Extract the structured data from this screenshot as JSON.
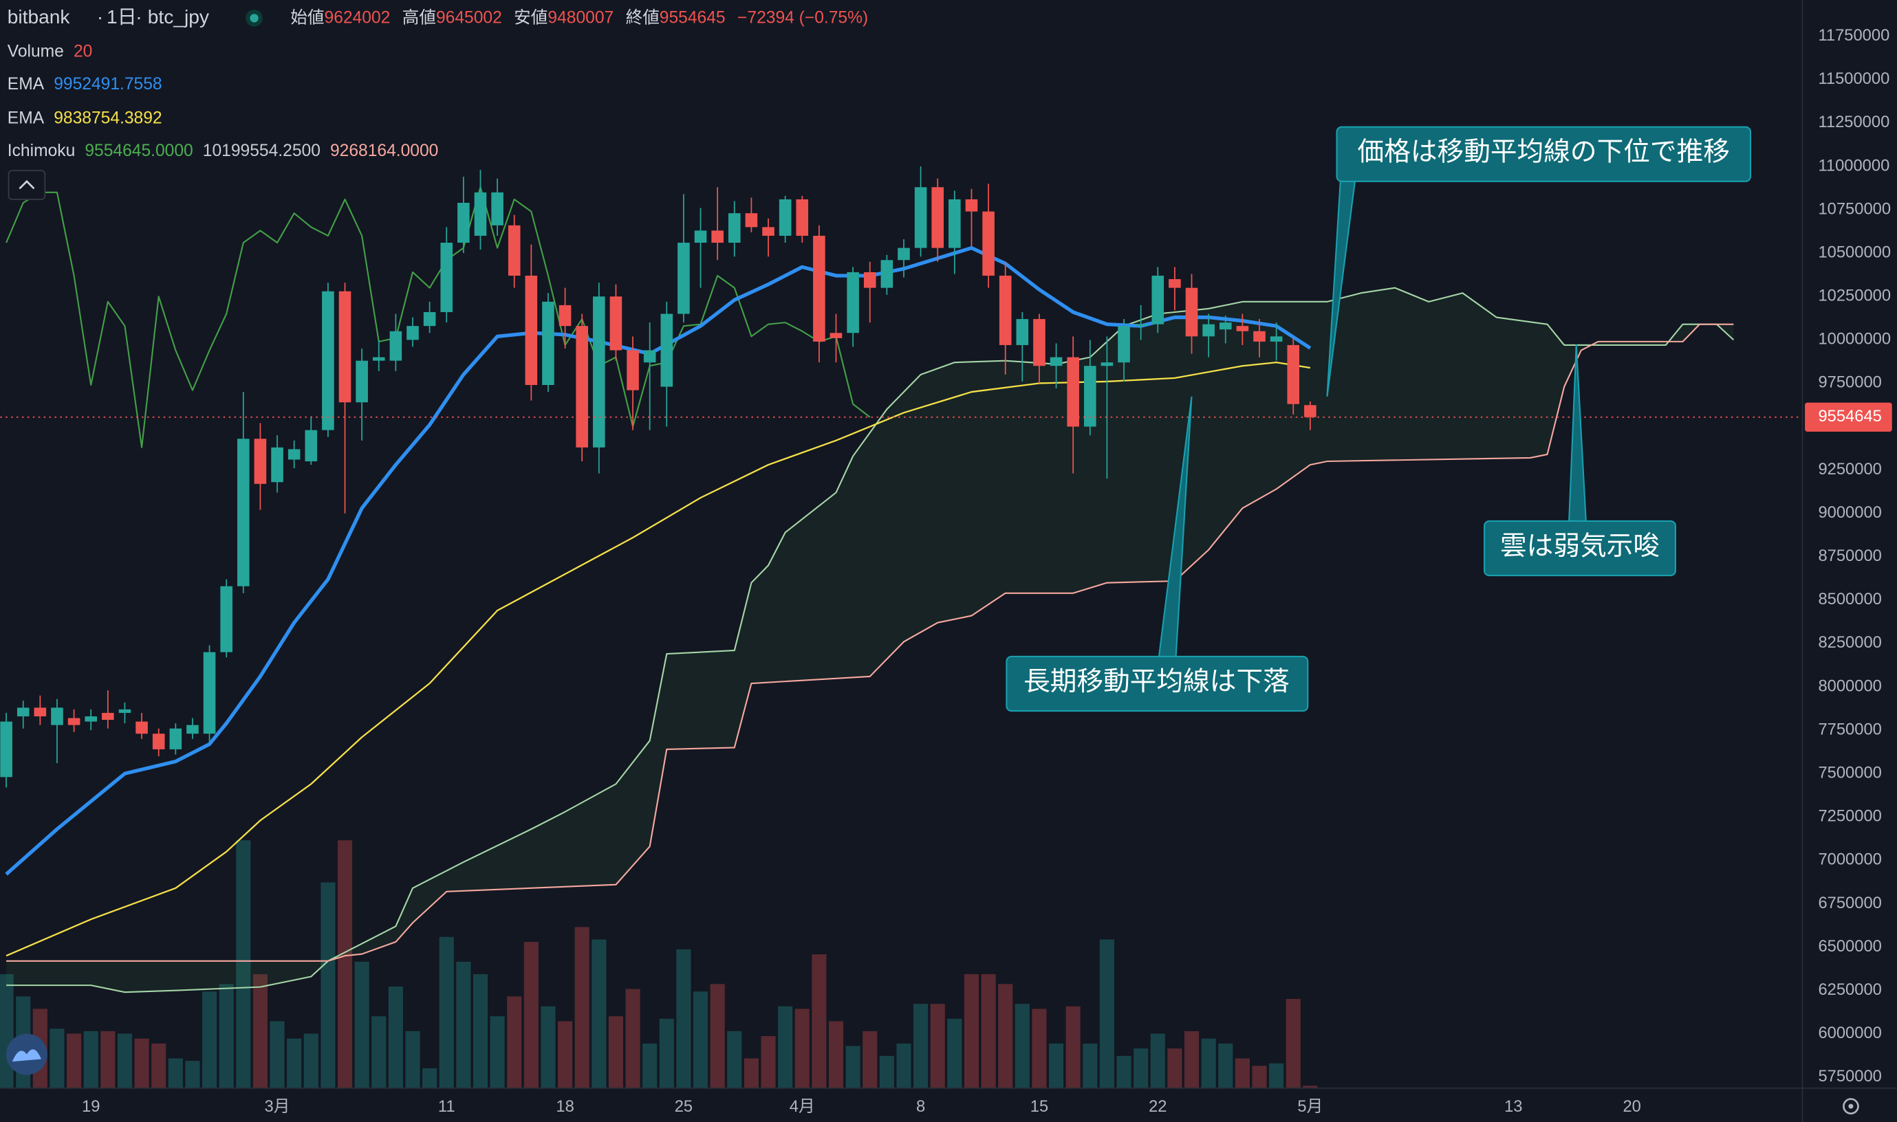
{
  "header": {
    "exchange": "bitbank",
    "interval": "1日",
    "symbol": "btc_jpy",
    "ohlc_labels": [
      "始値",
      "高値",
      "安値",
      "終値"
    ],
    "change": "−72394 (−0.75%)"
  },
  "legend": {
    "volume_name": "Volume",
    "volume_length": 20,
    "ema_name": "EMA",
    "ema_fast": 9952491.7558,
    "ema_slow": 9838754.3892,
    "ichimoku_name": "Ichimoku",
    "ichimoku_values": [
      "9554645.0000",
      "10199554.2500",
      "9268164.0000"
    ]
  },
  "annotations": [
    "価格は移動平均線の下位で推移",
    "長期移動平均線は下落",
    "雲は弱気示唆"
  ],
  "chart_data": {
    "type": "candlestick",
    "up_color": "#26a69a",
    "down_color": "#ef5350",
    "x": [
      45,
      46,
      47,
      48,
      49,
      50,
      51,
      52,
      53,
      54,
      55,
      56,
      57,
      58,
      59,
      60,
      61,
      62,
      63,
      64,
      65,
      66,
      67,
      68,
      69,
      70,
      71,
      72,
      73,
      74,
      75,
      76,
      77,
      78,
      79,
      80,
      81,
      82,
      83,
      84,
      85,
      86,
      87,
      88,
      89,
      90,
      91,
      92,
      93,
      94,
      95,
      96,
      97,
      98,
      99,
      100,
      101,
      102,
      103,
      104,
      105,
      106,
      107,
      108,
      109,
      110,
      111,
      112,
      113,
      114,
      115,
      116,
      117,
      118,
      119,
      120,
      121,
      122
    ],
    "open": [
      7480000,
      7830000,
      7880000,
      7780000,
      7820000,
      7800000,
      7850000,
      7850000,
      7800000,
      7730000,
      7640000,
      7730000,
      7730000,
      8200000,
      8580000,
      9430000,
      9180000,
      9310000,
      9300000,
      9480000,
      10280000,
      9640000,
      9880000,
      9880000,
      10000000,
      10080000,
      10160000,
      10560000,
      10600000,
      10660000,
      10660000,
      10370000,
      9740000,
      10200000,
      10080000,
      9380000,
      10250000,
      9940000,
      9870000,
      9730000,
      10150000,
      10560000,
      10630000,
      10560000,
      10730000,
      10650000,
      10600000,
      10810000,
      10600000,
      10040000,
      10040000,
      10390000,
      10300000,
      10460000,
      10530000,
      10880000,
      10530000,
      10810000,
      10740000,
      10370000,
      9970000,
      10120000,
      9850000,
      9900000,
      9500000,
      9850000,
      9870000,
      10080000,
      10090000,
      10350000,
      10300000,
      10020000,
      10060000,
      10080000,
      10050000,
      9990000,
      9970000,
      9624002
    ],
    "high": [
      7850000,
      7920000,
      7950000,
      7930000,
      7870000,
      7870000,
      7980000,
      7910000,
      7850000,
      7760000,
      7790000,
      7820000,
      8240000,
      8620000,
      9700000,
      9520000,
      9450000,
      9420000,
      9560000,
      10330000,
      10330000,
      9950000,
      10000000,
      10150000,
      10130000,
      10220000,
      10650000,
      10940000,
      10980000,
      10930000,
      10720000,
      10550000,
      10270000,
      10300000,
      10150000,
      10330000,
      10320000,
      10020000,
      10100000,
      10220000,
      10840000,
      10760000,
      10880000,
      10800000,
      10820000,
      10700000,
      10830000,
      10830000,
      10660000,
      10150000,
      10420000,
      10450000,
      10490000,
      10580000,
      11000000,
      10930000,
      10860000,
      10870000,
      10900000,
      10450000,
      10160000,
      10150000,
      9980000,
      10020000,
      10000000,
      10020000,
      10120000,
      10200000,
      10420000,
      10420000,
      10380000,
      10150000,
      10140000,
      10150000,
      10120000,
      10100000,
      10010000,
      9645002
    ],
    "low": [
      7420000,
      7760000,
      7780000,
      7560000,
      7740000,
      7750000,
      7760000,
      7790000,
      7700000,
      7600000,
      7610000,
      7700000,
      7680000,
      8170000,
      8540000,
      9020000,
      9120000,
      9260000,
      9280000,
      9440000,
      9000000,
      9420000,
      9820000,
      9820000,
      9960000,
      10040000,
      10100000,
      10500000,
      10520000,
      10600000,
      10300000,
      9650000,
      9700000,
      9950000,
      9300000,
      9230000,
      9880000,
      9480000,
      9480000,
      9500000,
      10100000,
      10300000,
      10460000,
      10480000,
      10620000,
      10480000,
      10560000,
      10560000,
      9870000,
      9870000,
      9960000,
      10100000,
      10260000,
      10360000,
      10480000,
      10450000,
      10380000,
      10540000,
      10300000,
      9800000,
      9760000,
      9750000,
      9720000,
      9230000,
      9450000,
      9200000,
      9760000,
      10000000,
      10040000,
      10170000,
      9920000,
      9900000,
      9980000,
      9970000,
      9900000,
      9880000,
      9570000,
      9480007
    ],
    "close": [
      7800000,
      7880000,
      7830000,
      7880000,
      7780000,
      7830000,
      7810000,
      7870000,
      7730000,
      7640000,
      7760000,
      7780000,
      8200000,
      8580000,
      9430000,
      9170000,
      9380000,
      9370000,
      9480000,
      10280000,
      9640000,
      9880000,
      9900000,
      10050000,
      10080000,
      10160000,
      10560000,
      10790000,
      10850000,
      10850000,
      10370000,
      9740000,
      10220000,
      10080000,
      9380000,
      10250000,
      9940000,
      9710000,
      9940000,
      10150000,
      10560000,
      10630000,
      10560000,
      10730000,
      10650000,
      10600000,
      10810000,
      10600000,
      9990000,
      10010000,
      10390000,
      10300000,
      10460000,
      10530000,
      10880000,
      10530000,
      10810000,
      10740000,
      10370000,
      9970000,
      10120000,
      9850000,
      9900000,
      9500000,
      9850000,
      9870000,
      10080000,
      10090000,
      10370000,
      10300000,
      10020000,
      10090000,
      10100000,
      10050000,
      9990000,
      10020000,
      9630000,
      9554645
    ],
    "volume": [
      46,
      37,
      32,
      24,
      22,
      23,
      23,
      22,
      20,
      18,
      12,
      11,
      39,
      42,
      100,
      46,
      27,
      20,
      22,
      83,
      100,
      51,
      29,
      41,
      23,
      8,
      61,
      51,
      46,
      29,
      37,
      59,
      33,
      27,
      65,
      60,
      29,
      40,
      18,
      28,
      56,
      39,
      42,
      23,
      12,
      21,
      33,
      32,
      54,
      27,
      17,
      23,
      13,
      18,
      34,
      34,
      28,
      46,
      46,
      42,
      34,
      32,
      18,
      33,
      18,
      60,
      13,
      16,
      22,
      16,
      23,
      20,
      18,
      12,
      9,
      10,
      36,
      1
    ],
    "ema_fast": {
      "color": "#2f8ff0",
      "x": [
        45,
        48,
        52,
        55,
        57,
        58,
        60,
        62,
        64,
        66,
        68,
        70,
        72,
        74,
        76,
        78,
        80,
        83,
        86,
        88,
        90,
        92,
        94,
        96,
        98,
        100,
        102,
        104,
        106,
        108,
        110,
        112,
        114,
        116,
        118,
        120,
        122
      ],
      "values": [
        6920000,
        7180000,
        7500000,
        7570000,
        7670000,
        7790000,
        8060000,
        8370000,
        8620000,
        9030000,
        9280000,
        9510000,
        9800000,
        10020000,
        10040000,
        10030000,
        9990000,
        9920000,
        10080000,
        10230000,
        10320000,
        10420000,
        10370000,
        10370000,
        10410000,
        10470000,
        10530000,
        10440000,
        10290000,
        10160000,
        10090000,
        10080000,
        10130000,
        10130000,
        10110000,
        10080000,
        9952491.7558
      ]
    },
    "ema_slow": {
      "color": "#f5e049",
      "x": [
        45,
        50,
        55,
        58,
        60,
        63,
        66,
        70,
        74,
        78,
        82,
        86,
        90,
        94,
        98,
        102,
        106,
        110,
        114,
        118,
        120,
        122
      ],
      "values": [
        6450000,
        6660000,
        6840000,
        7050000,
        7230000,
        7440000,
        7710000,
        8020000,
        8440000,
        8650000,
        8860000,
        9090000,
        9280000,
        9420000,
        9580000,
        9700000,
        9750000,
        9760000,
        9780000,
        9850000,
        9870000,
        9838754.3892
      ]
    },
    "lagging_span": {
      "color": "#43a047",
      "x": [
        45,
        46,
        47,
        48,
        49,
        50,
        51,
        52,
        53,
        54,
        55,
        56,
        57,
        58,
        59,
        60,
        61,
        62,
        63,
        64,
        65,
        66,
        67,
        68,
        69,
        70,
        71,
        72,
        73,
        74,
        75,
        76,
        77,
        78,
        79,
        80,
        81,
        82,
        83,
        84,
        85,
        86,
        87,
        88,
        89,
        90,
        91,
        92,
        93,
        94,
        95,
        96
      ],
      "values": [
        10560000,
        10790000,
        10850000,
        10850000,
        10370000,
        9740000,
        10220000,
        10080000,
        9380000,
        10250000,
        9940000,
        9710000,
        9940000,
        10150000,
        10560000,
        10630000,
        10560000,
        10730000,
        10650000,
        10600000,
        10810000,
        10600000,
        9990000,
        10010000,
        10390000,
        10300000,
        10460000,
        10530000,
        10880000,
        10530000,
        10810000,
        10740000,
        10370000,
        9970000,
        10120000,
        9850000,
        9900000,
        9500000,
        9850000,
        9870000,
        10080000,
        10090000,
        10370000,
        10300000,
        10020000,
        10090000,
        10100000,
        10050000,
        9990000,
        10020000,
        9630000,
        9554645
      ]
    },
    "span_a": {
      "color": "#a5d6a7",
      "x": [
        45,
        50,
        52,
        55,
        60,
        63,
        64,
        66,
        68,
        69,
        72,
        76,
        78,
        81,
        83,
        84,
        88,
        89,
        90,
        91,
        94,
        95,
        97,
        99,
        101,
        104,
        107,
        109,
        111,
        113,
        116,
        118,
        123,
        125,
        127,
        129,
        131,
        133,
        136,
        137,
        143,
        144,
        146,
        147
      ],
      "values": [
        6280000,
        6280000,
        6240000,
        6250000,
        6270000,
        6330000,
        6420000,
        6520000,
        6620000,
        6840000,
        6990000,
        7180000,
        7280000,
        7440000,
        7690000,
        8190000,
        8210000,
        8600000,
        8700000,
        8890000,
        9120000,
        9330000,
        9600000,
        9800000,
        9870000,
        9880000,
        9860000,
        9900000,
        10080000,
        10150000,
        10180000,
        10220000,
        10220000,
        10270000,
        10300000,
        10220000,
        10270000,
        10130000,
        10090000,
        9970000,
        9970000,
        10090000,
        10090000,
        10000000
      ]
    },
    "span_b": {
      "color": "#f7a9a0",
      "x": [
        45,
        64,
        65,
        66,
        68,
        69,
        71,
        81,
        83,
        84,
        88,
        89,
        96,
        98,
        100,
        102,
        104,
        108,
        110,
        114,
        116,
        118,
        120,
        122,
        123,
        135,
        136,
        137,
        138,
        139,
        144,
        145,
        147
      ],
      "values": [
        6420000,
        6420000,
        6450000,
        6460000,
        6530000,
        6640000,
        6820000,
        6860000,
        7080000,
        7640000,
        7650000,
        8020000,
        8060000,
        8260000,
        8370000,
        8410000,
        8540000,
        8540000,
        8600000,
        8610000,
        8790000,
        9030000,
        9140000,
        9280000,
        9300000,
        9320000,
        9340000,
        9730000,
        9940000,
        9990000,
        9990000,
        10090000,
        10090000
      ]
    },
    "current_price": 9554645,
    "ylim": [
      5687000,
      11959000
    ],
    "yticks": [
      11750000,
      11500000,
      11250000,
      11000000,
      10750000,
      10500000,
      10250000,
      10000000,
      9750000,
      9500000,
      9250000,
      9000000,
      8750000,
      8500000,
      8250000,
      8000000,
      7750000,
      7500000,
      7250000,
      7000000,
      6750000,
      6500000,
      6250000,
      6000000,
      5750000
    ],
    "xlim": [
      44.64,
      151.07
    ],
    "xticks": [
      {
        "value": 50,
        "label": "19"
      },
      {
        "value": 61,
        "label": "3月"
      },
      {
        "value": 71,
        "label": "11"
      },
      {
        "value": 78,
        "label": "18"
      },
      {
        "value": 85,
        "label": "25"
      },
      {
        "value": 92,
        "label": "4月"
      },
      {
        "value": 99,
        "label": "8"
      },
      {
        "value": 106,
        "label": "15"
      },
      {
        "value": 113,
        "label": "22"
      },
      {
        "value": 122,
        "label": "5月"
      },
      {
        "value": 134,
        "label": "13"
      },
      {
        "value": 141,
        "label": "20"
      }
    ],
    "grid": false
  }
}
